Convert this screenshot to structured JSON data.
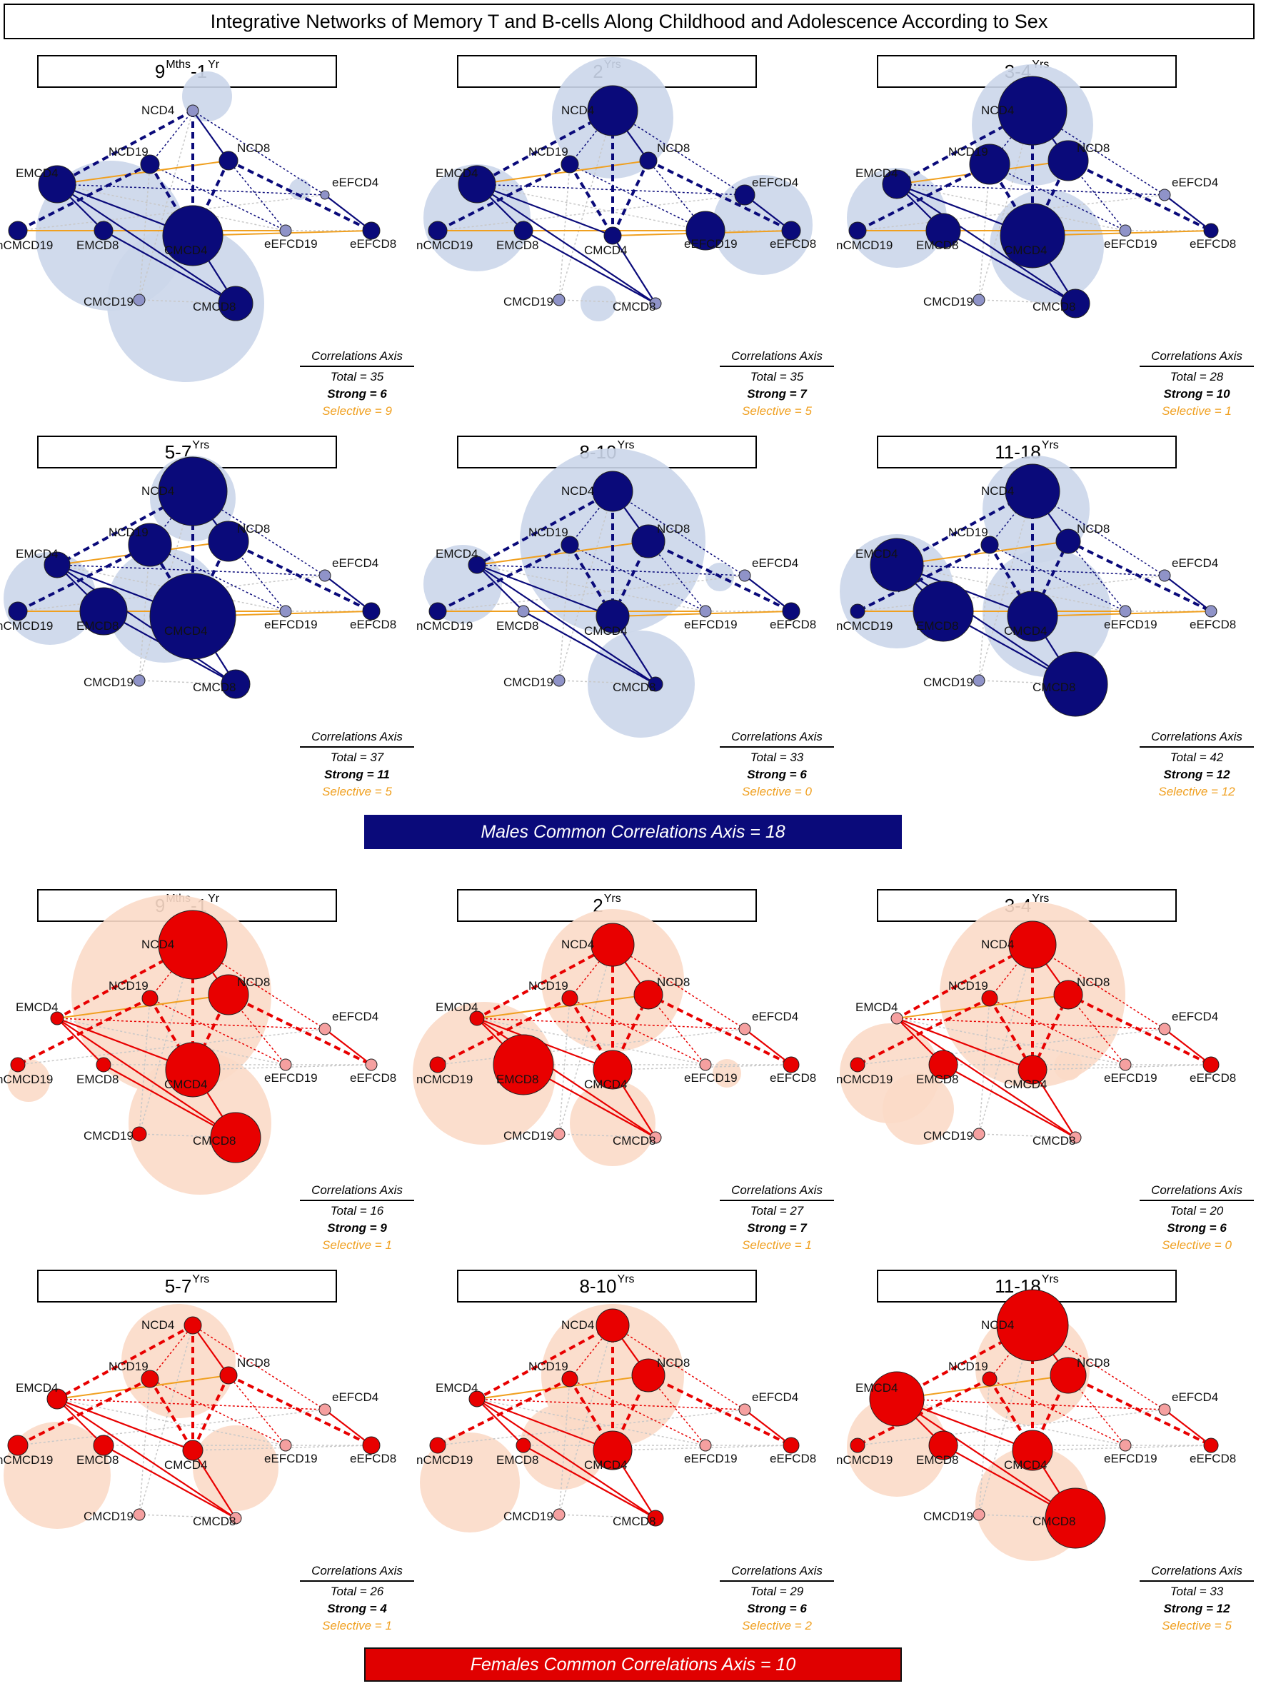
{
  "title": "Integrative Networks of Memory T and B-cells Along Childhood and Adolescence According to Sex",
  "axis_header": "Correlations Axis",
  "colors": {
    "male_node": "#0a0a7a",
    "male_small": "#8f93c8",
    "male_halo": "#cbd6ea",
    "female_node": "#e80000",
    "female_small": "#f5a0a0",
    "female_halo": "#fbdac8",
    "selective": "#f0a020",
    "neutral_edge": "#c8c8c8"
  },
  "node_labels": [
    "NCD4",
    "NCD19",
    "NCD8",
    "EMCD4",
    "eEFCD4",
    "nCMCD19",
    "EMCD8",
    "eEFCD19",
    "eEFCD8",
    "CMCD4",
    "CMCD19",
    "CMCD8"
  ],
  "males": {
    "banner": "Males Common Correlations Axis = 18",
    "panels": [
      {
        "age": "9",
        "age_sup": "Mths",
        "age2": "-1",
        "age_sup2": "Yr",
        "total": "Total = 35",
        "strong": "Strong = 6",
        "selective": "Selective = 9"
      },
      {
        "age": "2",
        "age_sup": "Yrs",
        "age2": "",
        "age_sup2": "",
        "total": "Total = 35",
        "strong": "Strong = 7",
        "selective": "Selective = 5"
      },
      {
        "age": "3-4",
        "age_sup": "Yrs",
        "age2": "",
        "age_sup2": "",
        "total": "Total = 28",
        "strong": "Strong = 10",
        "selective": "Selective = 1"
      },
      {
        "age": "5-7",
        "age_sup": "Yrs",
        "age2": "",
        "age_sup2": "",
        "total": "Total = 37",
        "strong": "Strong = 11",
        "selective": "Selective = 5"
      },
      {
        "age": "8-10",
        "age_sup": "Yrs",
        "age2": "",
        "age_sup2": "",
        "total": "Total = 33",
        "strong": "Strong = 6",
        "selective": "Selective = 0"
      },
      {
        "age": "11-18",
        "age_sup": "Yrs",
        "age2": "",
        "age_sup2": "",
        "total": "Total = 42",
        "strong": "Strong = 12",
        "selective": "Selective = 12"
      }
    ]
  },
  "females": {
    "banner": "Females Common Correlations Axis = 10",
    "panels": [
      {
        "age": "9",
        "age_sup": "Mths",
        "age2": "-1",
        "age_sup2": "Yr",
        "total": "Total = 16",
        "strong": "Strong = 9",
        "selective": "Selective = 1"
      },
      {
        "age": "2",
        "age_sup": "Yrs",
        "age2": "",
        "age_sup2": "",
        "total": "Total = 27",
        "strong": "Strong = 7",
        "selective": "Selective = 1"
      },
      {
        "age": "3-4",
        "age_sup": "Yrs",
        "age2": "",
        "age_sup2": "",
        "total": "Total = 20",
        "strong": "Strong = 6",
        "selective": "Selective = 0"
      },
      {
        "age": "5-7",
        "age_sup": "Yrs",
        "age2": "",
        "age_sup2": "",
        "total": "Total = 26",
        "strong": "Strong = 4",
        "selective": "Selective = 1"
      },
      {
        "age": "8-10",
        "age_sup": "Yrs",
        "age2": "",
        "age_sup2": "",
        "total": "Total = 29",
        "strong": "Strong = 6",
        "selective": "Selective = 2"
      },
      {
        "age": "11-18",
        "age_sup": "Yrs",
        "age2": "",
        "age_sup2": "",
        "total": "Total = 33",
        "strong": "Strong = 12",
        "selective": "Selective = 5"
      }
    ]
  }
}
